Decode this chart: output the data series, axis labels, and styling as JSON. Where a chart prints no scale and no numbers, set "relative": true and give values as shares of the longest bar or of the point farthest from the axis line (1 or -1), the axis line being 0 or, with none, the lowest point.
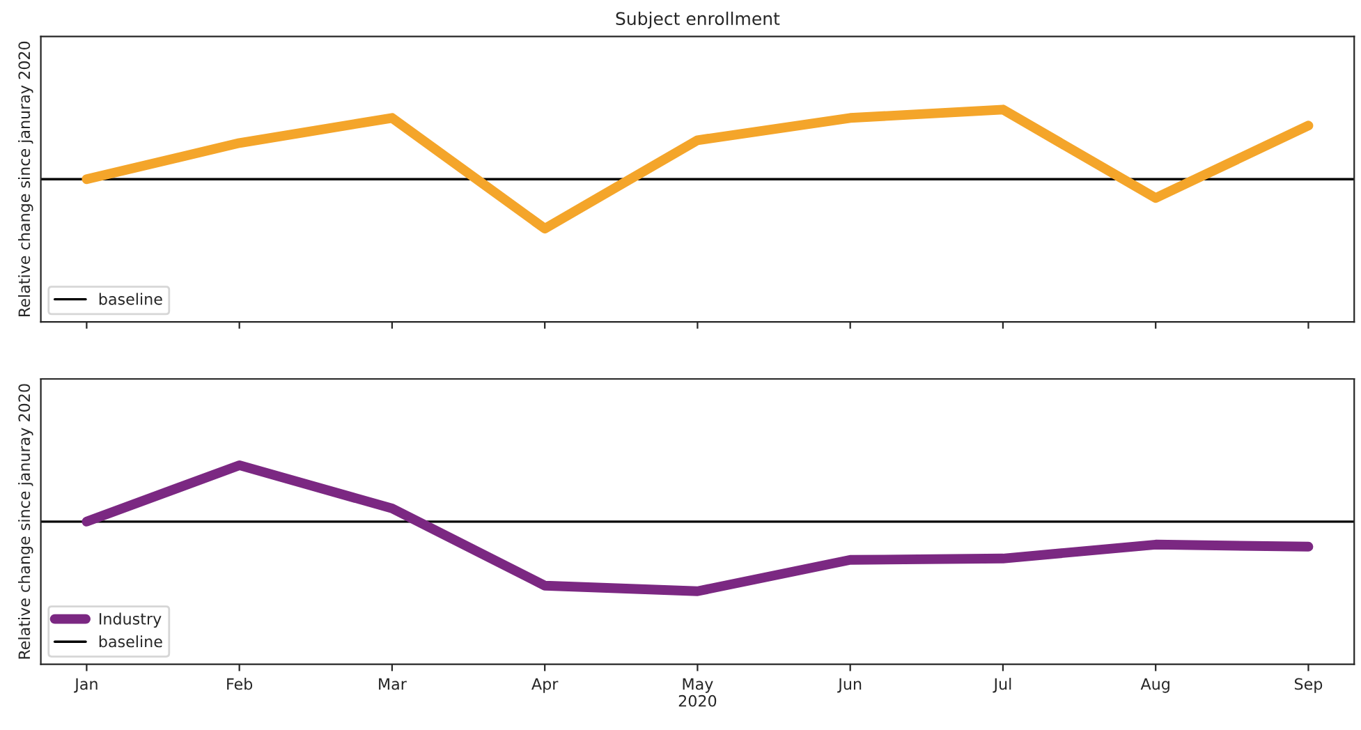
{
  "chart_data": [
    {
      "type": "line",
      "title": "Subject enrollment",
      "ylabel": "Relative change since januray 2020",
      "relative": true,
      "tick_labels": false,
      "legend": "bottom left",
      "categories": [
        null,
        null,
        null,
        null,
        null,
        null,
        null,
        null,
        null
      ],
      "series": [
        {
          "color": "#f4a52a",
          "values": [
            0,
            0.52,
            0.88,
            -0.71,
            0.56,
            0.88,
            1,
            -0.27,
            0.77
          ]
        }
      ],
      "ref_lines": [
        {
          "axis": "y",
          "value": 0,
          "label": "baseline",
          "color": "#000000"
        }
      ]
    },
    {
      "type": "line",
      "ylabel": "Relative change since januray 2020",
      "xlabel": "2020",
      "relative": true,
      "tick_labels": "x",
      "legend": "bottom left",
      "categories": [
        "Jan",
        "Feb",
        "Mar",
        "Apr",
        "May",
        "Jun",
        "Jul",
        "Aug",
        "Sep"
      ],
      "series": [
        {
          "name": "Industry",
          "color": "#7b2882",
          "values": [
            0,
            0.81,
            0.19,
            -0.92,
            -1,
            -0.55,
            -0.53,
            -0.33,
            -0.36
          ]
        }
      ],
      "ref_lines": [
        {
          "axis": "y",
          "value": 0,
          "label": "baseline",
          "color": "#000000"
        }
      ]
    }
  ]
}
